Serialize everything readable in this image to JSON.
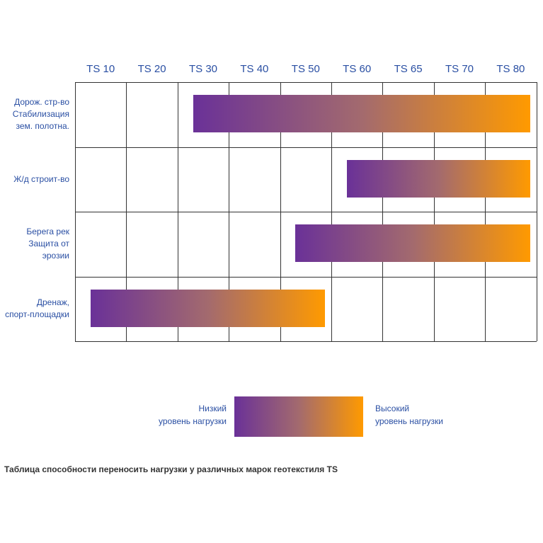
{
  "chart_data": {
    "type": "range-bar",
    "columns": [
      "TS 10",
      "TS 20",
      "TS 30",
      "TS 40",
      "TS 50",
      "TS 60",
      "TS 65",
      "TS 70",
      "TS 80"
    ],
    "rows": [
      {
        "label": "Дорож. стр-во\nСтабилизация\nзем. полотна.",
        "start": "TS 30",
        "end": "TS 80"
      },
      {
        "label": "Ж/д строит-во",
        "start": "TS 60",
        "end": "TS 80"
      },
      {
        "label": "Берега рек\nЗащита от\nэрозии",
        "start": "TS 50",
        "end": "TS 80"
      },
      {
        "label": "Дренаж,\nспорт-площадки",
        "start": "TS 10",
        "end": "TS 50"
      }
    ],
    "legend": {
      "low": "Низкий\nуровень нагрузки",
      "high": "Высокий\nуровень нагрузки"
    },
    "colors": {
      "low": "#6a3198",
      "high": "#ff9a00",
      "labels": "#2a4fa3"
    }
  },
  "caption": "Таблица способности переносить нагрузки у различных марок геотекстиля TS"
}
